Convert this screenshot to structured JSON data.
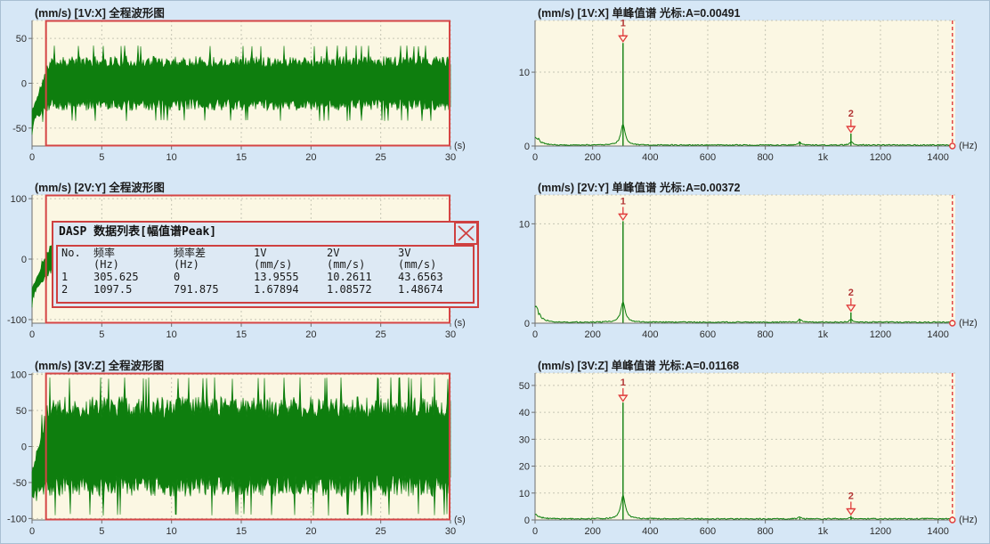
{
  "colors": {
    "background": "#d6e7f6",
    "plot_bg": "#fbf7e3",
    "grid": "#c6c6b4",
    "axis": "#6f6f6f",
    "trace": "#0e7e0e",
    "selection": "#d54545",
    "marker": "#e03c3c",
    "dialog_bg": "#dde9f4",
    "dialog_border": "#cf4040"
  },
  "dialog": {
    "title": "DASP 数据列表[幅值谱Peak]",
    "columns": [
      {
        "l1": "No.",
        "l2": ""
      },
      {
        "l1": "频率",
        "l2": "(Hz)"
      },
      {
        "l1": "频率差",
        "l2": "(Hz)"
      },
      {
        "l1": "1V",
        "l2": "(mm/s)"
      },
      {
        "l1": "2V",
        "l2": "(mm/s)"
      },
      {
        "l1": "3V",
        "l2": "(mm/s)"
      }
    ],
    "rows": [
      [
        "1",
        "305.625",
        "0",
        "13.9555",
        "10.2611",
        "43.6563"
      ],
      [
        "2",
        "1097.5",
        "791.875",
        "1.67894",
        "1.08572",
        "1.48674"
      ]
    ]
  },
  "chart_data": [
    {
      "type": "line",
      "role": "waveform",
      "channel": "1V:X",
      "title": "(mm/s) [1V:X] 全程波形图",
      "xlabel_unit": "(s)",
      "x_range": [
        0,
        30
      ],
      "x_tick_values": [
        0,
        5,
        10,
        15,
        20,
        25,
        30
      ],
      "x_tick_labels": [
        "0",
        "5",
        "10",
        "15",
        "20",
        "25",
        "30"
      ],
      "y_range": [
        -70,
        70
      ],
      "y_tick_values": [
        50,
        0,
        -50
      ],
      "y_tick_labels": [
        "50",
        "0",
        "-50"
      ],
      "steady_amplitude": 25,
      "transient_min": -65,
      "transient_end_s": 1.3,
      "selection_window_s": [
        1,
        30
      ],
      "grid": true
    },
    {
      "type": "line",
      "role": "waveform",
      "channel": "2V:Y",
      "title": "(mm/s) [2V:Y] 全程波形图",
      "xlabel_unit": "(s)",
      "x_range": [
        0,
        30
      ],
      "x_tick_values": [
        0,
        5,
        10,
        15,
        20,
        25,
        30
      ],
      "x_tick_labels": [
        "0",
        "5",
        "10",
        "15",
        "20",
        "25",
        "30"
      ],
      "y_range": [
        -106,
        106
      ],
      "y_tick_values": [
        100,
        0,
        -100
      ],
      "y_tick_labels": [
        "100",
        "0",
        "-100"
      ],
      "steady_amplitude": 20,
      "transient_min": -90,
      "transient_end_s": 1.3,
      "selection_window_s": [
        1,
        30
      ],
      "grid": true
    },
    {
      "type": "line",
      "role": "waveform",
      "channel": "3V:Z",
      "title": "(mm/s) [3V:Z] 全程波形图",
      "xlabel_unit": "(s)",
      "x_range": [
        0,
        30
      ],
      "x_tick_values": [
        0,
        5,
        10,
        15,
        20,
        25,
        30
      ],
      "x_tick_labels": [
        "0",
        "5",
        "10",
        "15",
        "20",
        "25",
        "30"
      ],
      "y_range": [
        -102,
        102
      ],
      "y_tick_values": [
        100,
        50,
        0,
        -50,
        -100
      ],
      "y_tick_labels": [
        "100",
        "50",
        "0",
        "-50",
        "-100"
      ],
      "steady_amplitude": 57,
      "transient_min": -92,
      "transient_end_s": 1.2,
      "selection_window_s": [
        1,
        30
      ],
      "grid": true
    },
    {
      "type": "line",
      "role": "spectrum",
      "channel": "1V:X",
      "title": "(mm/s) [1V:X] 单峰值谱 光标:A=0.00491",
      "cursor_amplitude": "A=0.00491",
      "xlabel_unit": "(Hz)",
      "x_range": [
        0,
        1460
      ],
      "x_tick_values": [
        0,
        200,
        400,
        600,
        800,
        1000,
        1200,
        1400
      ],
      "x_tick_labels": [
        "0",
        "200",
        "400",
        "600",
        "800",
        "1k",
        "1200",
        "1400"
      ],
      "y_range": [
        0,
        17
      ],
      "y_tick_values": [
        10,
        0
      ],
      "y_tick_labels": [
        "10",
        "0"
      ],
      "peaks": [
        {
          "no": "1",
          "freq_hz": 305.625,
          "amp": 13.9555
        },
        {
          "no": "2",
          "freq_hz": 1097.5,
          "amp": 1.67894
        }
      ],
      "minor_peak": {
        "freq_hz": 920,
        "amp": 0.5
      },
      "cursor_freq_hz": 1450,
      "grid": true
    },
    {
      "type": "line",
      "role": "spectrum",
      "channel": "2V:Y",
      "title": "(mm/s) [2V:Y] 单峰值谱 光标:A=0.00372",
      "cursor_amplitude": "A=0.00372",
      "xlabel_unit": "(Hz)",
      "x_range": [
        0,
        1460
      ],
      "x_tick_values": [
        0,
        200,
        400,
        600,
        800,
        1000,
        1200,
        1400
      ],
      "x_tick_labels": [
        "0",
        "200",
        "400",
        "600",
        "800",
        "1k",
        "1200",
        "1400"
      ],
      "y_range": [
        0,
        12.9
      ],
      "y_tick_values": [
        10,
        0
      ],
      "y_tick_labels": [
        "10",
        "0"
      ],
      "peaks": [
        {
          "no": "1",
          "freq_hz": 305.625,
          "amp": 10.2611
        },
        {
          "no": "2",
          "freq_hz": 1097.5,
          "amp": 1.08572
        }
      ],
      "minor_peak": {
        "freq_hz": 920,
        "amp": 0.35
      },
      "cursor_freq_hz": 1450,
      "grid": true
    },
    {
      "type": "line",
      "role": "spectrum",
      "channel": "3V:Z",
      "title": "(mm/s) [3V:Z] 单峰值谱 光标:A=0.01168",
      "cursor_amplitude": "A=0.01168",
      "xlabel_unit": "(Hz)",
      "x_range": [
        0,
        1460
      ],
      "x_tick_values": [
        0,
        200,
        400,
        600,
        800,
        1000,
        1200,
        1400
      ],
      "x_tick_labels": [
        "0",
        "200",
        "400",
        "600",
        "800",
        "1k",
        "1200",
        "1400"
      ],
      "y_range": [
        0,
        54.6
      ],
      "y_tick_values": [
        50,
        40,
        30,
        20,
        10,
        0
      ],
      "y_tick_labels": [
        "50",
        "40",
        "30",
        "20",
        "10",
        "0"
      ],
      "peaks": [
        {
          "no": "1",
          "freq_hz": 305.625,
          "amp": 43.6563
        },
        {
          "no": "2",
          "freq_hz": 1097.5,
          "amp": 1.48674
        }
      ],
      "minor_peak": {
        "freq_hz": 920,
        "amp": 0.9
      },
      "cursor_freq_hz": 1450,
      "grid": true
    }
  ]
}
